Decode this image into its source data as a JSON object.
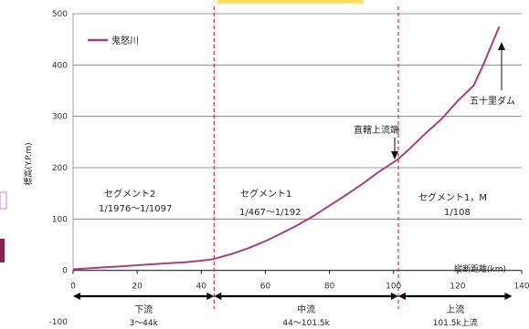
{
  "chart_data": {
    "type": "line",
    "title": "",
    "xlabel": "縦断距離(km)",
    "ylabel": "標高(Y.P.m)",
    "xlim": [
      0,
      140
    ],
    "ylim": [
      -100,
      500
    ],
    "x_ticks": [
      "0",
      "20",
      "40",
      "60",
      "80",
      "100",
      "120",
      "140"
    ],
    "y_ticks": [
      "-100",
      "0",
      "100",
      "200",
      "300",
      "400",
      "500"
    ],
    "grid": "horizontal",
    "legend_position": "top-left",
    "series": [
      {
        "name": "鬼怒川",
        "color": "#a8407a",
        "x": [
          0,
          5,
          10,
          15,
          20,
          25,
          30,
          35,
          40,
          43,
          45,
          50,
          55,
          60,
          65,
          70,
          75,
          80,
          85,
          90,
          95,
          101.5,
          105,
          110,
          115,
          120,
          125,
          128,
          130,
          133
        ],
        "y": [
          2,
          4,
          6,
          8,
          10,
          12,
          14,
          16,
          19,
          21,
          24,
          33,
          44,
          57,
          72,
          88,
          106,
          126,
          146,
          167,
          190,
          217,
          237,
          267,
          295,
          330,
          360,
          400,
          430,
          475
        ]
      }
    ],
    "vlines": [
      {
        "x": 44,
        "color": "#e03030"
      },
      {
        "x": 101.5,
        "color": "#e03030"
      }
    ],
    "annotations": {
      "segment2": {
        "name": "セグメント2",
        "slope": "1/1976～1/1097"
      },
      "segment1": {
        "name": "セグメント1",
        "slope": "1/467～1/192"
      },
      "segment1m": {
        "name": "セグメント1，M",
        "slope": "1/108"
      },
      "dam": "五十里ダム",
      "upstream_end": "直轄上流端"
    },
    "reaches": [
      {
        "name": "下流",
        "range": "3～44k",
        "x_start": 0,
        "x_end": 44
      },
      {
        "name": "中流",
        "range": "44～101.5k",
        "x_start": 44,
        "x_end": 101.5
      },
      {
        "name": "上流",
        "range": "101.5k上流",
        "x_start": 101.5,
        "x_end": 137
      }
    ]
  }
}
